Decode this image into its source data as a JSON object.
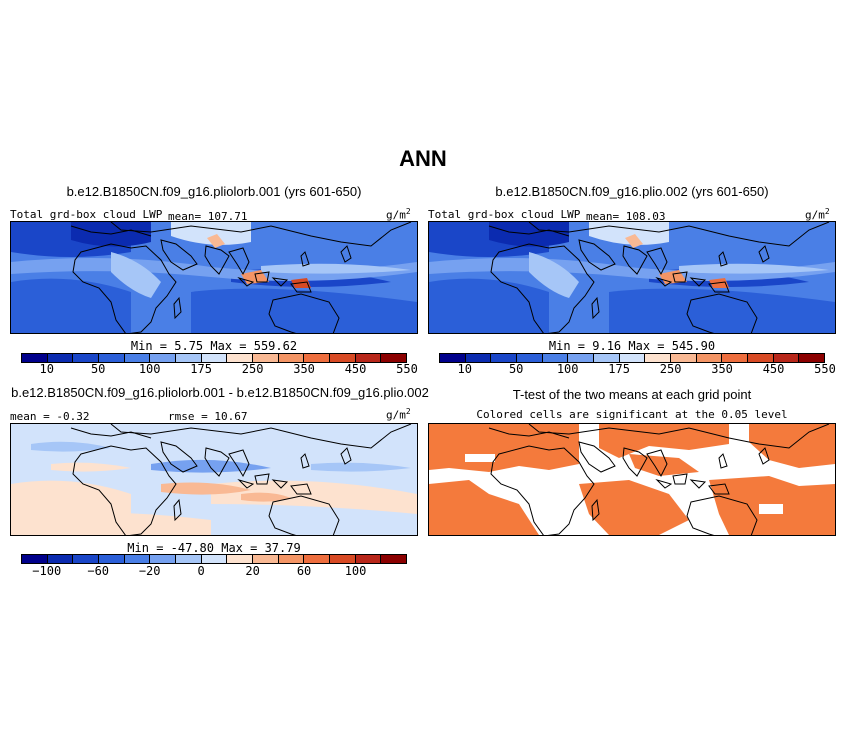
{
  "figure": {
    "title": "ANN",
    "units": "g/m",
    "units_exp": "2"
  },
  "panel1": {
    "title": "b.e12.B1850CN.f09_g16.pliolorb.001 (yrs 601-650)",
    "left_label": "Total grd-box cloud LWP",
    "mean_label": "mean= 107.71",
    "minmax": "Min =    5.75  Max = 559.62"
  },
  "panel2": {
    "title": "b.e12.B1850CN.f09_g16.plio.002 (yrs 601-650)",
    "left_label": "Total grd-box cloud LWP",
    "mean_label": "mean= 108.03",
    "minmax": "Min =    9.16  Max = 545.90"
  },
  "panel3": {
    "title": "b.e12.B1850CN.f09_g16.pliolorb.001 - b.e12.B1850CN.f09_g16.plio.002",
    "mean_label": "mean =   -0.32",
    "rmse_label": "rmse =   10.67",
    "minmax": "Min = -47.80  Max =  37.79"
  },
  "panel4": {
    "title": "T-test of the two means at each grid point",
    "subtitle": "Colored cells are significant at the 0.05 level",
    "sig_color": "#f47a3c"
  },
  "colorbar_abs": {
    "colors": [
      "#00008b",
      "#0b2bb0",
      "#1a46c8",
      "#2b5fd8",
      "#4a7fe6",
      "#76a1f0",
      "#a6c6f7",
      "#d2e3fb",
      "#fde2cf",
      "#f9b994",
      "#f49565",
      "#ee6e3e",
      "#d84a24",
      "#b8271a",
      "#8b0000"
    ],
    "labels": [
      "10",
      "50",
      "100",
      "175",
      "250",
      "350",
      "450",
      "550"
    ]
  },
  "colorbar_diff": {
    "colors": [
      "#00008b",
      "#0b2bb0",
      "#1a46c8",
      "#2b5fd8",
      "#4a7fe6",
      "#76a1f0",
      "#a6c6f7",
      "#d2e3fb",
      "#fde2cf",
      "#f9b994",
      "#f49565",
      "#ee6e3e",
      "#d84a24",
      "#b8271a",
      "#8b0000"
    ],
    "labels": [
      "−100",
      "−60",
      "−20",
      "0",
      "20",
      "60",
      "100"
    ]
  }
}
